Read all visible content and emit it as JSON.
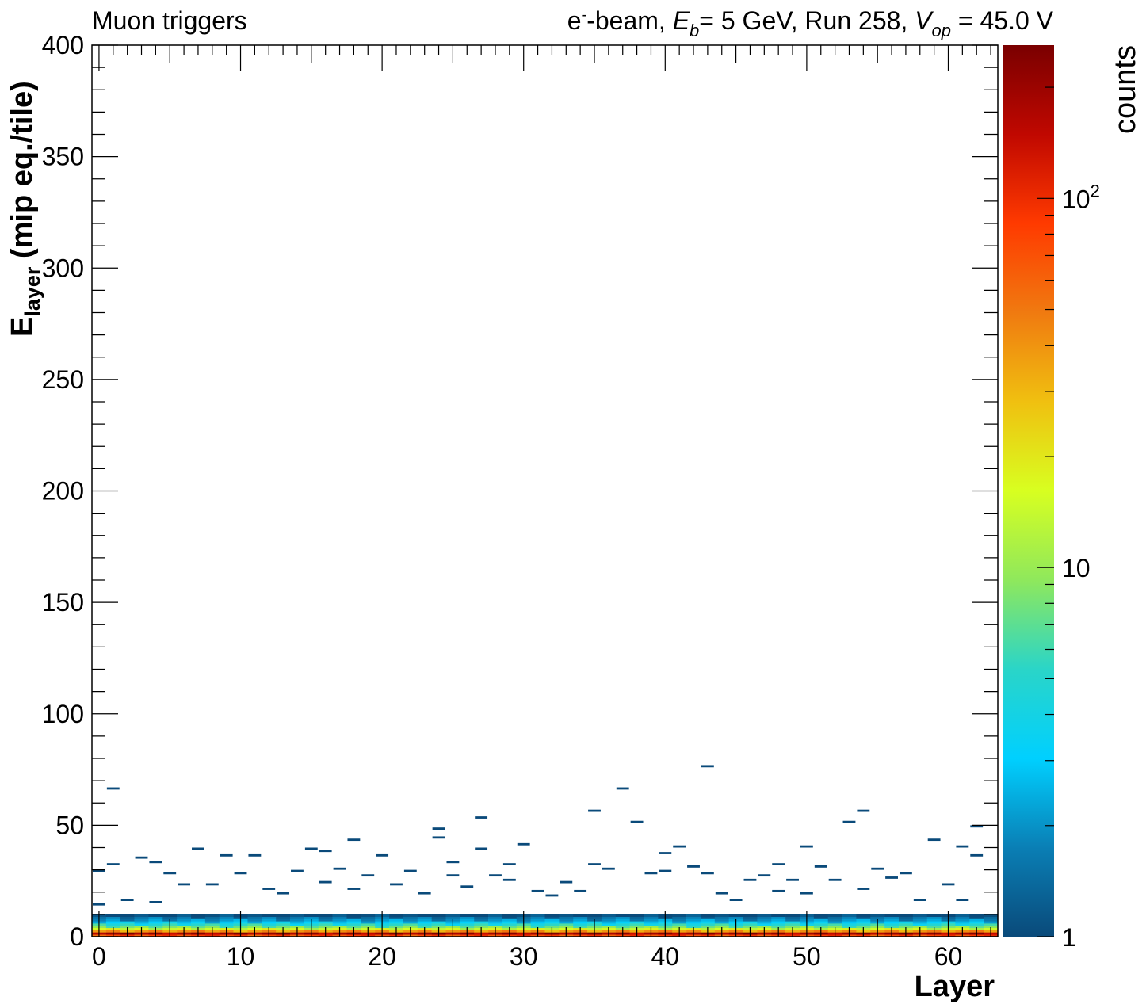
{
  "header": {
    "left_title": "Muon triggers",
    "right_title": {
      "p1": "e",
      "p1_sup": "-",
      "p2": "-beam, ",
      "p3": "E",
      "p3_sub": "b",
      "p4": "= 5 GeV, Run 258, ",
      "p5": "V",
      "p5_sub": "op",
      "p6": " = 45.0 V"
    }
  },
  "chart_data": {
    "type": "heatmap",
    "title": "",
    "xlabel": "Layer",
    "ylabel": {
      "main": "E",
      "sub": "layer",
      "rest": " (mip eq./tile)"
    },
    "zlabel": "counts",
    "xlim": [
      -0.5,
      63.5
    ],
    "ylim": [
      0,
      400
    ],
    "zlim": [
      1,
      260
    ],
    "z_scale": "log",
    "x_ticks": [
      0,
      10,
      20,
      30,
      40,
      50,
      60
    ],
    "y_ticks": [
      0,
      50,
      100,
      150,
      200,
      250,
      300,
      350,
      400
    ],
    "z_ticks": [
      {
        "value": 1,
        "label": "1"
      },
      {
        "value": 10,
        "label": "10"
      },
      {
        "value": 100,
        "label": "10",
        "sup": "2"
      }
    ],
    "colormap": [
      "#0a4a7a",
      "#0a7fb5",
      "#00d0ff",
      "#2ad5c8",
      "#8fe85c",
      "#d8ff20",
      "#f0c010",
      "#f07a10",
      "#ff3a00",
      "#c00800",
      "#7a0000"
    ],
    "y_bin_width": 1,
    "core_bins": [
      {
        "y": 0.5,
        "count": 80
      },
      {
        "y": 1.5,
        "count": 200
      },
      {
        "y": 2.5,
        "count": 40
      },
      {
        "y": 3.5,
        "count": 15
      },
      {
        "y": 4.5,
        "count": 8
      },
      {
        "y": 5.5,
        "count": 5
      },
      {
        "y": 6.5,
        "count": 3
      },
      {
        "y": 7.5,
        "count": 2
      },
      {
        "y": 8.5,
        "count": 1.5
      },
      {
        "y": 9.5,
        "count": 1
      }
    ],
    "sparse_points": [
      {
        "x": 0,
        "y": 29.5
      },
      {
        "x": 1,
        "y": 66.5
      },
      {
        "x": 1,
        "y": 32.5
      },
      {
        "x": 0,
        "y": 14.5
      },
      {
        "x": 2,
        "y": 16.5
      },
      {
        "x": 3,
        "y": 35.5
      },
      {
        "x": 4,
        "y": 33.5
      },
      {
        "x": 4,
        "y": 15.5
      },
      {
        "x": 5,
        "y": 28.5
      },
      {
        "x": 6,
        "y": 23.5
      },
      {
        "x": 7,
        "y": 39.5
      },
      {
        "x": 8,
        "y": 23.5
      },
      {
        "x": 9,
        "y": 36.5
      },
      {
        "x": 10,
        "y": 28.5
      },
      {
        "x": 11,
        "y": 36.5
      },
      {
        "x": 12,
        "y": 21.5
      },
      {
        "x": 13,
        "y": 19.5
      },
      {
        "x": 14,
        "y": 29.5
      },
      {
        "x": 15,
        "y": 39.5
      },
      {
        "x": 16,
        "y": 38.5
      },
      {
        "x": 16,
        "y": 24.5
      },
      {
        "x": 17,
        "y": 30.5
      },
      {
        "x": 18,
        "y": 43.5
      },
      {
        "x": 18,
        "y": 21.5
      },
      {
        "x": 19,
        "y": 27.5
      },
      {
        "x": 20,
        "y": 36.5
      },
      {
        "x": 21,
        "y": 23.5
      },
      {
        "x": 22,
        "y": 29.5
      },
      {
        "x": 23,
        "y": 19.5
      },
      {
        "x": 24,
        "y": 48.5
      },
      {
        "x": 24,
        "y": 44.5
      },
      {
        "x": 25,
        "y": 33.5
      },
      {
        "x": 25,
        "y": 27.5
      },
      {
        "x": 26,
        "y": 22.5
      },
      {
        "x": 27,
        "y": 53.5
      },
      {
        "x": 27,
        "y": 39.5
      },
      {
        "x": 28,
        "y": 27.5
      },
      {
        "x": 29,
        "y": 32.5
      },
      {
        "x": 29,
        "y": 25.5
      },
      {
        "x": 30,
        "y": 41.5
      },
      {
        "x": 31,
        "y": 20.5
      },
      {
        "x": 32,
        "y": 18.5
      },
      {
        "x": 33,
        "y": 24.5
      },
      {
        "x": 34,
        "y": 20.5
      },
      {
        "x": 35,
        "y": 56.5
      },
      {
        "x": 35,
        "y": 32.5
      },
      {
        "x": 36,
        "y": 30.5
      },
      {
        "x": 37,
        "y": 66.5
      },
      {
        "x": 38,
        "y": 51.5
      },
      {
        "x": 39,
        "y": 28.5
      },
      {
        "x": 40,
        "y": 37.5
      },
      {
        "x": 40,
        "y": 29.5
      },
      {
        "x": 41,
        "y": 40.5
      },
      {
        "x": 42,
        "y": 31.5
      },
      {
        "x": 43,
        "y": 76.5
      },
      {
        "x": 43,
        "y": 28.5
      },
      {
        "x": 44,
        "y": 19.5
      },
      {
        "x": 45,
        "y": 16.5
      },
      {
        "x": 46,
        "y": 25.5
      },
      {
        "x": 47,
        "y": 27.5
      },
      {
        "x": 48,
        "y": 32.5
      },
      {
        "x": 48,
        "y": 20.5
      },
      {
        "x": 49,
        "y": 25.5
      },
      {
        "x": 50,
        "y": 40.5
      },
      {
        "x": 50,
        "y": 19.5
      },
      {
        "x": 51,
        "y": 31.5
      },
      {
        "x": 52,
        "y": 25.5
      },
      {
        "x": 53,
        "y": 51.5
      },
      {
        "x": 54,
        "y": 56.5
      },
      {
        "x": 54,
        "y": 21.5
      },
      {
        "x": 55,
        "y": 30.5
      },
      {
        "x": 56,
        "y": 26.5
      },
      {
        "x": 57,
        "y": 28.5
      },
      {
        "x": 58,
        "y": 16.5
      },
      {
        "x": 59,
        "y": 43.5
      },
      {
        "x": 60,
        "y": 23.5
      },
      {
        "x": 61,
        "y": 40.5
      },
      {
        "x": 61,
        "y": 16.5
      },
      {
        "x": 62,
        "y": 49.5
      },
      {
        "x": 62,
        "y": 36.5
      }
    ],
    "grid": false,
    "legend": "colorbar-right"
  }
}
